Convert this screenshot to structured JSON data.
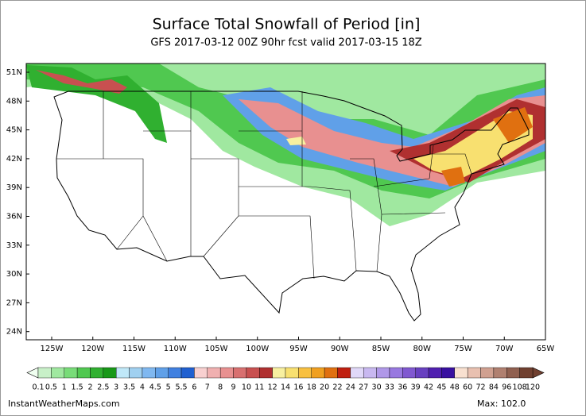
{
  "header": {
    "title": "Surface Total Snowfall of Period [in]",
    "subtitle": "GFS 2017-03-12 00Z 90hr fcst valid 2017-03-15 18Z"
  },
  "map": {
    "lat_labels": [
      "51N",
      "48N",
      "45N",
      "42N",
      "39N",
      "36N",
      "33N",
      "30N",
      "27N",
      "24N"
    ],
    "lon_labels": [
      "125W",
      "120W",
      "115W",
      "110W",
      "105W",
      "100W",
      "95W",
      "90W",
      "85W",
      "80W",
      "75W",
      "70W",
      "65W"
    ]
  },
  "colorbar": {
    "labels": [
      "0.1",
      "0.5",
      "1",
      "1.5",
      "2",
      "2.5",
      "3",
      "3.5",
      "4",
      "4.5",
      "5",
      "5.5",
      "6",
      "7",
      "8",
      "9",
      "10",
      "11",
      "12",
      "14",
      "16",
      "18",
      "20",
      "22",
      "24",
      "27",
      "30",
      "33",
      "36",
      "39",
      "42",
      "45",
      "48",
      "60",
      "72",
      "84",
      "96",
      "108",
      "120"
    ],
    "colors": [
      "#c8f0c8",
      "#a0e8a0",
      "#78dc78",
      "#50c850",
      "#30b030",
      "#189818",
      "#c0e8f8",
      "#a0d0f0",
      "#80b8f0",
      "#60a0e8",
      "#4080e0",
      "#2060d0",
      "#f8d0d0",
      "#f0b0b0",
      "#e89090",
      "#d87070",
      "#c85050",
      "#b03030",
      "#f8f0a0",
      "#f8e070",
      "#f8c040",
      "#f0a020",
      "#e07010",
      "#c02010",
      "#e0d8f8",
      "#c8b8f0",
      "#b098e8",
      "#9878e0",
      "#8058d0",
      "#6840c0",
      "#5020b0",
      "#3810a0",
      "#f8e0d0",
      "#e8c0b0",
      "#d0a090",
      "#b08070",
      "#906050",
      "#704030"
    ]
  },
  "footer": {
    "site": "InstantWeatherMaps.com",
    "max": "Max: 102.0"
  }
}
